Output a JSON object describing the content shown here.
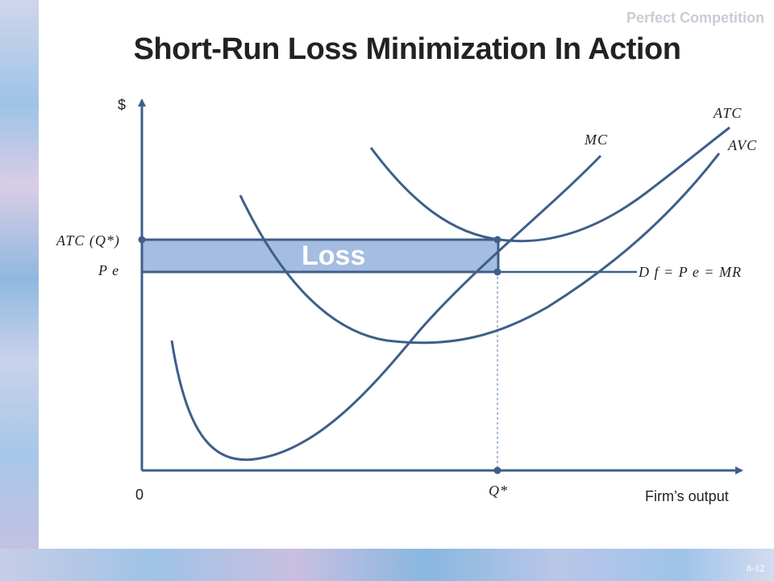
{
  "header": {
    "tag": "Perfect Competition"
  },
  "title": "Short-Run Loss Minimization In Action",
  "slide_number": "8-12",
  "diagram": {
    "y_axis_label": "$",
    "x_axis_label": "Firm’s output",
    "origin_label": "0",
    "curves": {
      "atc": "ATC",
      "avc": "AVC",
      "mc": "MC"
    },
    "atc_q_label": "ATC (Q*)",
    "price_label": "P e",
    "demand_label": "D f = P e = MR",
    "q_star_label": "Q*",
    "loss_label": "Loss"
  },
  "colors": {
    "curve": "#3e5f8a",
    "loss_fill": "#a4bde0",
    "axis": "#3e5f8a"
  }
}
